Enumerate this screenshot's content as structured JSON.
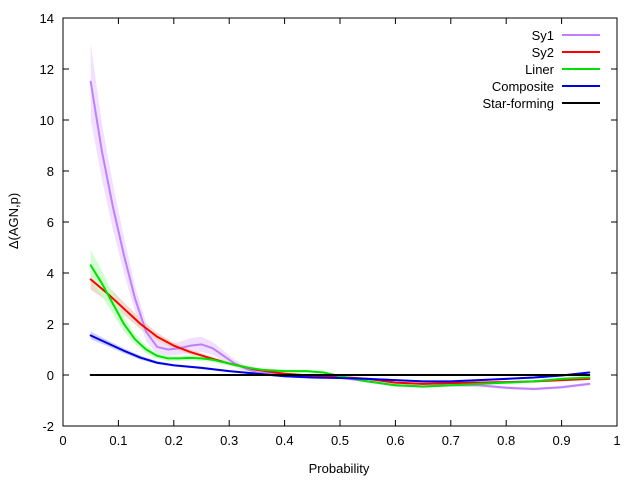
{
  "chart_data": {
    "type": "line",
    "title": "",
    "xlabel": "Probability",
    "ylabel": "Δ(AGN,p)",
    "xlim": [
      0,
      1
    ],
    "ylim": [
      -2,
      14
    ],
    "xticks": [
      0,
      0.1,
      0.2,
      0.3,
      0.4,
      0.5,
      0.6,
      0.7,
      0.8,
      0.9,
      1
    ],
    "xtick_labels": [
      "0",
      "0.1",
      "0.2",
      "0.3",
      "0.4",
      "0.5",
      "0.6",
      "0.7",
      "0.8",
      "0.9",
      "1"
    ],
    "yticks": [
      -2,
      0,
      2,
      4,
      6,
      8,
      10,
      12,
      14
    ],
    "ytick_labels": [
      "-2",
      "0",
      "2",
      "4",
      "6",
      "8",
      "10",
      "12",
      "14"
    ],
    "grid": false,
    "legend_position": "top-right",
    "series": [
      {
        "name": "Sy1",
        "color": "#bf7fff",
        "band_color": "#eed9ff",
        "points": [
          [
            0.05,
            11.5
          ],
          [
            0.07,
            8.8
          ],
          [
            0.09,
            6.6
          ],
          [
            0.11,
            4.7
          ],
          [
            0.13,
            3.0
          ],
          [
            0.15,
            1.7
          ],
          [
            0.17,
            1.1
          ],
          [
            0.19,
            1.0
          ],
          [
            0.21,
            1.05
          ],
          [
            0.23,
            1.15
          ],
          [
            0.25,
            1.2
          ],
          [
            0.27,
            1.05
          ],
          [
            0.29,
            0.75
          ],
          [
            0.31,
            0.45
          ],
          [
            0.33,
            0.25
          ],
          [
            0.35,
            0.1
          ],
          [
            0.4,
            0.0
          ],
          [
            0.45,
            -0.05
          ],
          [
            0.5,
            -0.1
          ],
          [
            0.55,
            -0.25
          ],
          [
            0.6,
            -0.4
          ],
          [
            0.65,
            -0.45
          ],
          [
            0.7,
            -0.4
          ],
          [
            0.75,
            -0.4
          ],
          [
            0.8,
            -0.5
          ],
          [
            0.85,
            -0.55
          ],
          [
            0.9,
            -0.48
          ],
          [
            0.95,
            -0.35
          ]
        ],
        "band": [
          1.5,
          1.1,
          0.9,
          0.7,
          0.5,
          0.35,
          0.3,
          0.25,
          0.25,
          0.3,
          0.3,
          0.25,
          0.2,
          0.15,
          0.12,
          0.1,
          0.08,
          0.06,
          0.05,
          0.06,
          0.06,
          0.06,
          0.06,
          0.06,
          0.06,
          0.06,
          0.06,
          0.06
        ]
      },
      {
        "name": "Sy2",
        "color": "#ff0000",
        "band_color": "#e8cfc0",
        "points": [
          [
            0.05,
            3.75
          ],
          [
            0.08,
            3.2
          ],
          [
            0.11,
            2.6
          ],
          [
            0.14,
            2.0
          ],
          [
            0.17,
            1.5
          ],
          [
            0.2,
            1.15
          ],
          [
            0.23,
            0.9
          ],
          [
            0.26,
            0.7
          ],
          [
            0.3,
            0.45
          ],
          [
            0.35,
            0.2
          ],
          [
            0.4,
            0.05
          ],
          [
            0.45,
            -0.03
          ],
          [
            0.5,
            -0.08
          ],
          [
            0.55,
            -0.15
          ],
          [
            0.6,
            -0.3
          ],
          [
            0.65,
            -0.35
          ],
          [
            0.7,
            -0.32
          ],
          [
            0.75,
            -0.3
          ],
          [
            0.8,
            -0.28
          ],
          [
            0.85,
            -0.25
          ],
          [
            0.9,
            -0.2
          ],
          [
            0.95,
            -0.15
          ]
        ],
        "band": [
          0.4,
          0.3,
          0.25,
          0.2,
          0.15,
          0.12,
          0.1,
          0.08,
          0.07,
          0.06,
          0.05,
          0.05,
          0.05,
          0.05,
          0.05,
          0.05,
          0.05,
          0.05,
          0.05,
          0.05,
          0.05,
          0.05
        ]
      },
      {
        "name": "Liner",
        "color": "#00e000",
        "band_color": "#c6ffc6",
        "points": [
          [
            0.05,
            4.3
          ],
          [
            0.07,
            3.6
          ],
          [
            0.09,
            2.8
          ],
          [
            0.11,
            2.0
          ],
          [
            0.13,
            1.4
          ],
          [
            0.15,
            1.0
          ],
          [
            0.17,
            0.75
          ],
          [
            0.19,
            0.65
          ],
          [
            0.21,
            0.65
          ],
          [
            0.23,
            0.67
          ],
          [
            0.25,
            0.65
          ],
          [
            0.27,
            0.6
          ],
          [
            0.3,
            0.45
          ],
          [
            0.33,
            0.3
          ],
          [
            0.36,
            0.2
          ],
          [
            0.4,
            0.15
          ],
          [
            0.44,
            0.15
          ],
          [
            0.47,
            0.1
          ],
          [
            0.5,
            -0.05
          ],
          [
            0.55,
            -0.25
          ],
          [
            0.6,
            -0.4
          ],
          [
            0.65,
            -0.45
          ],
          [
            0.7,
            -0.4
          ],
          [
            0.75,
            -0.35
          ],
          [
            0.8,
            -0.3
          ],
          [
            0.85,
            -0.25
          ],
          [
            0.9,
            -0.15
          ],
          [
            0.95,
            -0.1
          ]
        ],
        "band": [
          0.6,
          0.5,
          0.4,
          0.3,
          0.2,
          0.15,
          0.12,
          0.1,
          0.1,
          0.1,
          0.1,
          0.1,
          0.08,
          0.07,
          0.06,
          0.06,
          0.06,
          0.06,
          0.05,
          0.05,
          0.05,
          0.05,
          0.05,
          0.05,
          0.05,
          0.05,
          0.05,
          0.05
        ]
      },
      {
        "name": "Composite",
        "color": "#0000e0",
        "band_color": "#c0c0ff",
        "points": [
          [
            0.05,
            1.55
          ],
          [
            0.08,
            1.25
          ],
          [
            0.11,
            0.95
          ],
          [
            0.14,
            0.68
          ],
          [
            0.17,
            0.48
          ],
          [
            0.2,
            0.38
          ],
          [
            0.25,
            0.28
          ],
          [
            0.3,
            0.15
          ],
          [
            0.35,
            0.05
          ],
          [
            0.4,
            -0.05
          ],
          [
            0.45,
            -0.1
          ],
          [
            0.5,
            -0.12
          ],
          [
            0.55,
            -0.15
          ],
          [
            0.6,
            -0.2
          ],
          [
            0.65,
            -0.25
          ],
          [
            0.7,
            -0.25
          ],
          [
            0.75,
            -0.2
          ],
          [
            0.8,
            -0.15
          ],
          [
            0.85,
            -0.1
          ],
          [
            0.9,
            -0.02
          ],
          [
            0.95,
            0.1
          ]
        ],
        "band": [
          0.15,
          0.12,
          0.1,
          0.08,
          0.06,
          0.05,
          0.05,
          0.04,
          0.04,
          0.04,
          0.04,
          0.04,
          0.04,
          0.04,
          0.04,
          0.04,
          0.04,
          0.04,
          0.04,
          0.04,
          0.04
        ]
      },
      {
        "name": "Star-forming",
        "color": "#000000",
        "band_color": "",
        "points": [
          [
            0.05,
            0.0
          ],
          [
            0.95,
            0.0
          ]
        ],
        "band": []
      }
    ]
  }
}
